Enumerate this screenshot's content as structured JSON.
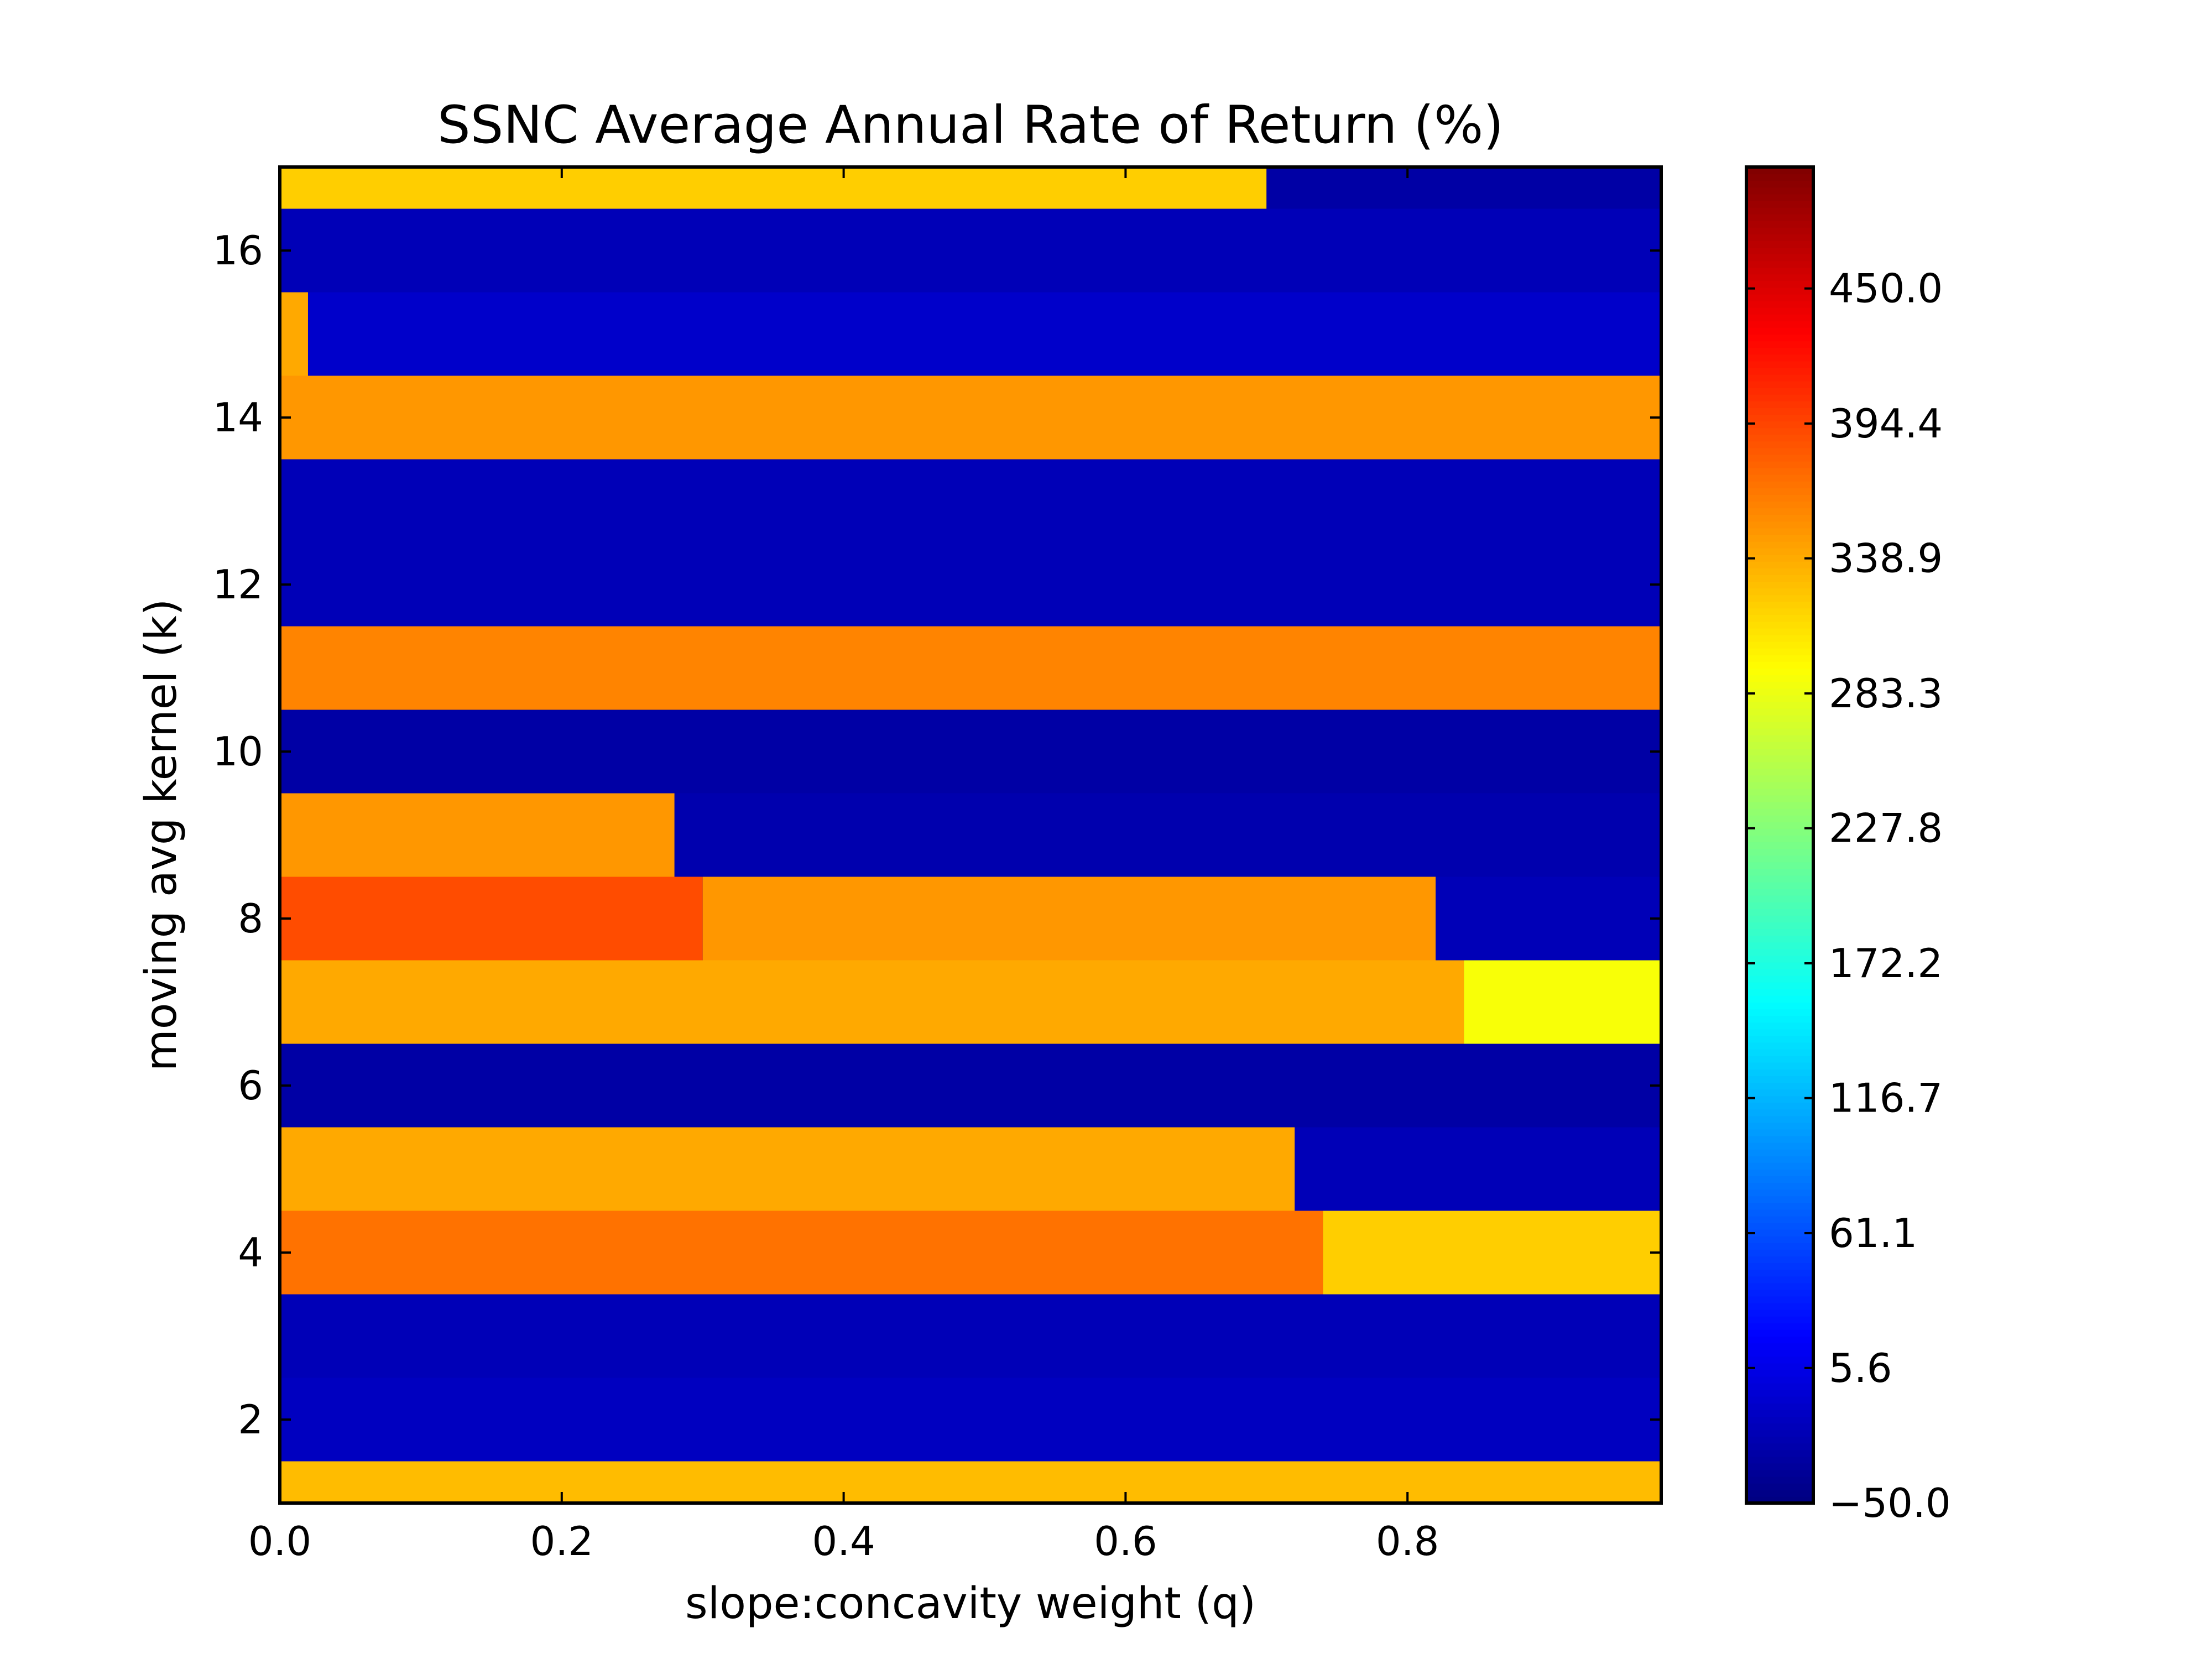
{
  "chart_data": {
    "type": "heatmap",
    "title": "SSNC Average Annual Rate of Return (%)",
    "xlabel": "slope:concavity weight (q)",
    "ylabel": "moving avg kernel (k)",
    "xlim": [
      0.0,
      0.98
    ],
    "ylim": [
      1,
      17
    ],
    "x_ticks": [
      "0.0",
      "0.2",
      "0.4",
      "0.6",
      "0.8"
    ],
    "y_ticks": [
      "2",
      "4",
      "6",
      "8",
      "10",
      "12",
      "14",
      "16"
    ],
    "colorbar": {
      "colormap": "jet",
      "range": [
        -50.0,
        500.0
      ],
      "ticks": [
        "−50.0",
        "5.6",
        "61.1",
        "116.7",
        "172.2",
        "227.8",
        "283.3",
        "338.9",
        "394.4",
        "450.0"
      ]
    },
    "grid": false,
    "k_values": [
      1,
      2,
      3,
      4,
      5,
      6,
      7,
      8,
      9,
      10,
      11,
      12,
      13,
      14,
      15,
      16,
      17
    ],
    "q_values": [
      0.0,
      0.02,
      0.04,
      0.06,
      0.08,
      0.1,
      0.12,
      0.14,
      0.16,
      0.18,
      0.2,
      0.22,
      0.24,
      0.26,
      0.28,
      0.3,
      0.32,
      0.34,
      0.36,
      0.38,
      0.4,
      0.42,
      0.44,
      0.46,
      0.48,
      0.5,
      0.52,
      0.54,
      0.56,
      0.58,
      0.6,
      0.62,
      0.64,
      0.66,
      0.68,
      0.7,
      0.72,
      0.74,
      0.76,
      0.78,
      0.8,
      0.82,
      0.84,
      0.86,
      0.88,
      0.9,
      0.92,
      0.94,
      0.96,
      0.98
    ],
    "segments": [
      {
        "k": 1,
        "q_start": 0.0,
        "q_end": 0.98,
        "value": 330
      },
      {
        "k": 2,
        "q_start": 0.0,
        "q_end": 0.98,
        "value": -15
      },
      {
        "k": 3,
        "q_start": 0.0,
        "q_end": 0.98,
        "value": -20
      },
      {
        "k": 4,
        "q_start": 0.0,
        "q_end": 0.74,
        "value": 370
      },
      {
        "k": 4,
        "q_start": 0.74,
        "q_end": 0.98,
        "value": 320
      },
      {
        "k": 5,
        "q_start": 0.0,
        "q_end": 0.72,
        "value": 340
      },
      {
        "k": 5,
        "q_start": 0.72,
        "q_end": 0.98,
        "value": -20
      },
      {
        "k": 6,
        "q_start": 0.0,
        "q_end": 0.98,
        "value": -30
      },
      {
        "k": 7,
        "q_start": 0.0,
        "q_end": 0.84,
        "value": 340
      },
      {
        "k": 7,
        "q_start": 0.84,
        "q_end": 0.98,
        "value": 290
      },
      {
        "k": 8,
        "q_start": 0.0,
        "q_end": 0.3,
        "value": 390
      },
      {
        "k": 8,
        "q_start": 0.3,
        "q_end": 0.82,
        "value": 350
      },
      {
        "k": 8,
        "q_start": 0.82,
        "q_end": 0.98,
        "value": -20
      },
      {
        "k": 9,
        "q_start": 0.0,
        "q_end": 0.28,
        "value": 350
      },
      {
        "k": 9,
        "q_start": 0.28,
        "q_end": 0.98,
        "value": -25
      },
      {
        "k": 10,
        "q_start": 0.0,
        "q_end": 0.98,
        "value": -30
      },
      {
        "k": 11,
        "q_start": 0.0,
        "q_end": 0.98,
        "value": 360
      },
      {
        "k": 12,
        "q_start": 0.0,
        "q_end": 0.98,
        "value": -20
      },
      {
        "k": 13,
        "q_start": 0.0,
        "q_end": 0.98,
        "value": -20
      },
      {
        "k": 14,
        "q_start": 0.0,
        "q_end": 0.98,
        "value": 350
      },
      {
        "k": 15,
        "q_start": 0.0,
        "q_end": 0.02,
        "value": 340
      },
      {
        "k": 15,
        "q_start": 0.02,
        "q_end": 0.98,
        "value": -10
      },
      {
        "k": 16,
        "q_start": 0.0,
        "q_end": 0.98,
        "value": -20
      },
      {
        "k": 17,
        "q_start": 0.0,
        "q_end": 0.7,
        "value": 320
      },
      {
        "k": 17,
        "q_start": 0.7,
        "q_end": 0.98,
        "value": -30
      }
    ]
  }
}
